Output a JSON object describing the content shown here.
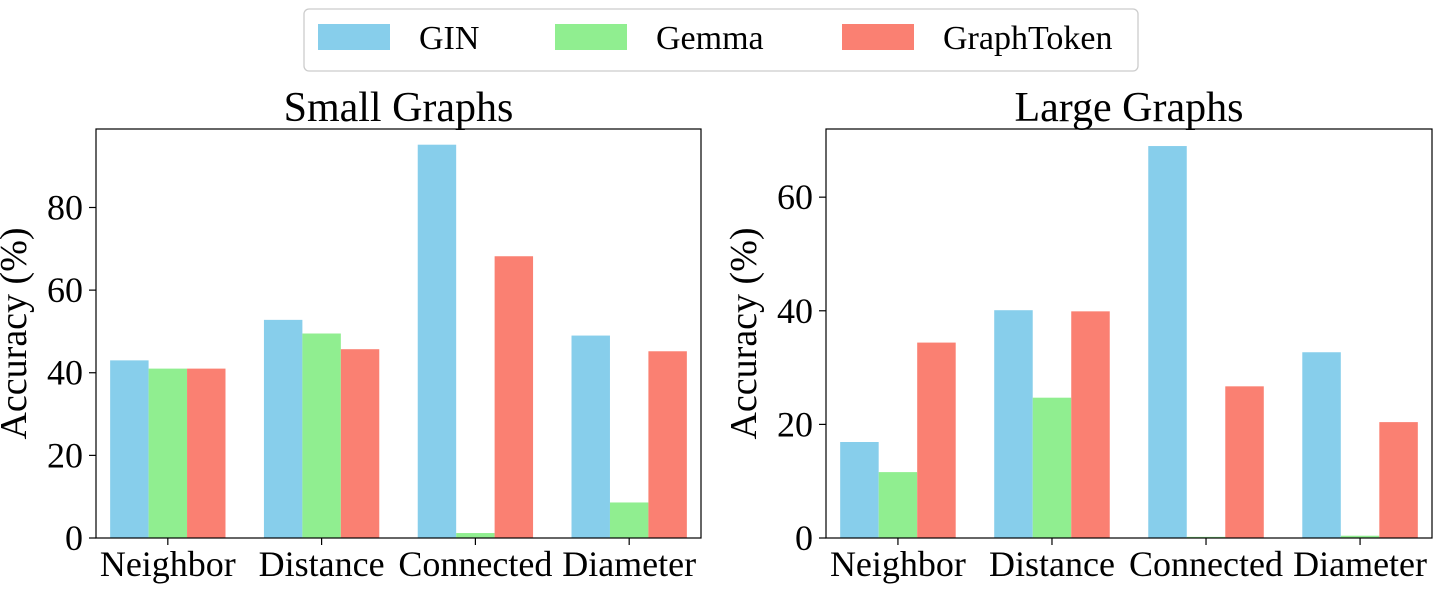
{
  "legend": {
    "entries": [
      {
        "label": "GIN",
        "color": "#87CEEB"
      },
      {
        "label": "Gemma",
        "color": "#90EE90"
      },
      {
        "label": "GraphToken",
        "color": "#FA8072"
      }
    ],
    "placement": "top-center"
  },
  "chart_data": [
    {
      "type": "bar",
      "title": "Small Graphs",
      "xlabel": "",
      "ylabel": "Accuracy (%)",
      "categories": [
        "Neighbor",
        "Distance",
        "Connected",
        "Diameter"
      ],
      "ylim": [
        0,
        99
      ],
      "yticks": [
        0,
        20,
        40,
        60,
        80
      ],
      "grid": false,
      "series": [
        {
          "name": "GIN",
          "values": [
            43,
            52.8,
            95.2,
            49
          ]
        },
        {
          "name": "Gemma",
          "values": [
            41,
            49.5,
            1.2,
            8.6
          ]
        },
        {
          "name": "GraphToken",
          "values": [
            41,
            45.7,
            68.2,
            45.2
          ]
        }
      ]
    },
    {
      "type": "bar",
      "title": "Large Graphs",
      "xlabel": "",
      "ylabel": "Accuracy (%)",
      "categories": [
        "Neighbor",
        "Distance",
        "Connected",
        "Diameter"
      ],
      "ylim": [
        0,
        72
      ],
      "yticks": [
        0,
        20,
        40,
        60
      ],
      "grid": false,
      "series": [
        {
          "name": "GIN",
          "values": [
            16.9,
            40.1,
            69,
            32.7
          ]
        },
        {
          "name": "Gemma",
          "values": [
            11.6,
            24.7,
            0.2,
            0.4
          ]
        },
        {
          "name": "GraphToken",
          "values": [
            34.4,
            39.9,
            26.7,
            20.4
          ]
        }
      ]
    }
  ]
}
